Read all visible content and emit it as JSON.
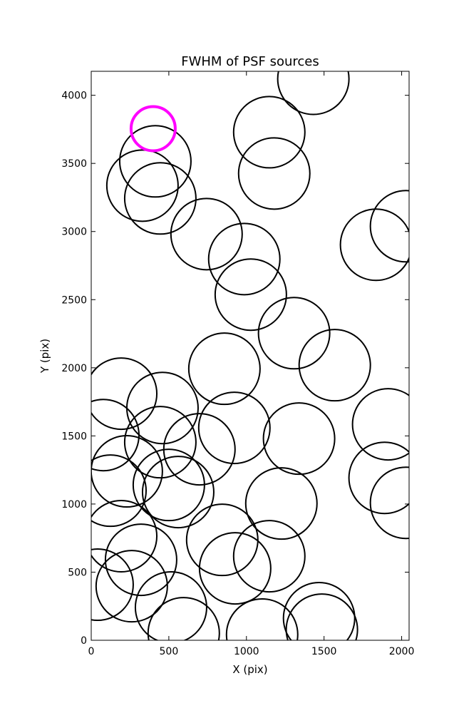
{
  "chart_data": {
    "type": "scatter",
    "title": "FWHM of PSF sources",
    "x_label": "X (pix)",
    "y_label": "Y (pix)",
    "xlim": [
      0,
      2048
    ],
    "ylim": [
      0,
      4176
    ],
    "xticks": [
      0,
      500,
      1000,
      1500,
      2000
    ],
    "yticks": [
      0,
      500,
      1000,
      1500,
      2000,
      2500,
      3000,
      3500,
      4000
    ],
    "series": [
      {
        "color": "#000000",
        "x": [
          1431,
          1147,
          1179,
          413,
          330,
          445,
          743,
          986,
          1028,
          1307,
          1569,
          858,
          1835,
          2028,
          193,
          459,
          445,
          78,
          697,
          922,
          1339,
          1913,
          1890,
          2028,
          229,
          124,
          500,
          560,
          1225,
          844,
          927,
          1147,
          193,
          321,
          261,
          41,
          514,
          596,
          1101,
          1468,
          1486
        ],
        "values": [
          4121,
          3729,
          3426,
          3515,
          3337,
          3243,
          2981,
          2798,
          2537,
          2254,
          2019,
          1993,
          2903,
          3039,
          1810,
          1705,
          1454,
          1506,
          1402,
          1559,
          1480,
          1585,
          1192,
          1009,
          1240,
          1098,
          1140,
          1088,
          1004,
          737,
          528,
          617,
          764,
          591,
          397,
          408,
          241,
          52,
          42,
          162,
          78
        ]
      },
      {
        "color": "#ff00ff",
        "x": [
          399
        ],
        "values": [
          3755
        ]
      }
    ]
  }
}
